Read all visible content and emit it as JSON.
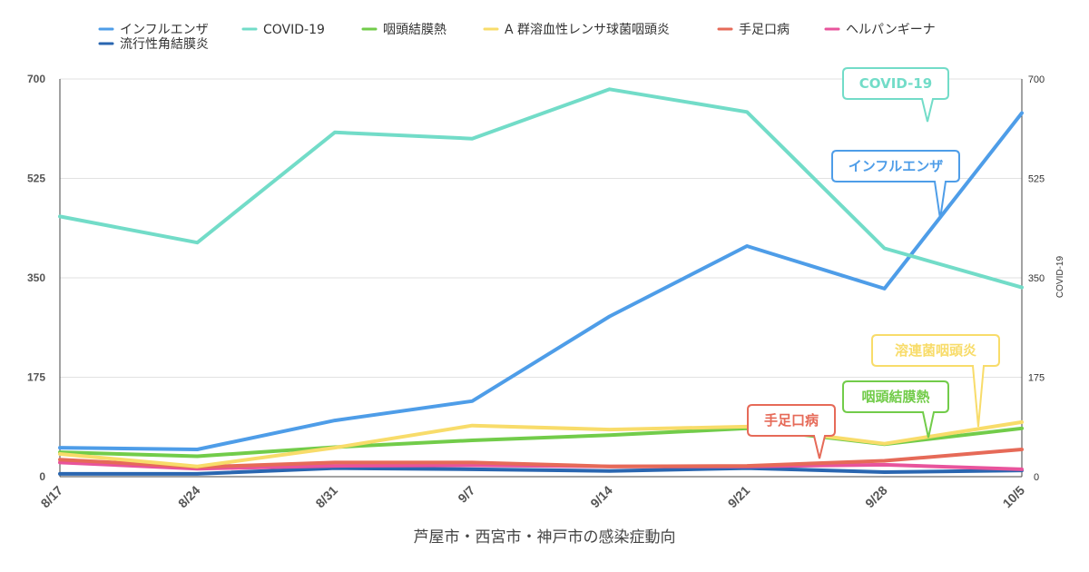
{
  "chart_data": {
    "type": "line",
    "title": "",
    "xlabel": "芦屋市・西宮市・神戸市の感染症動向",
    "ylabel": "",
    "ylabel_right": "COVID-19",
    "ylim": [
      0,
      700
    ],
    "yticks": [
      0,
      175,
      350,
      525,
      700
    ],
    "yticks_right": [
      0,
      175,
      350,
      525,
      700
    ],
    "grid": true,
    "legend_position": "top-left",
    "categories": [
      "8/17",
      "8/24",
      "8/31",
      "9/7",
      "9/14",
      "9/21",
      "9/28",
      "10/5"
    ],
    "series": [
      {
        "name": "インフルエンザ",
        "color": "#4e9de8",
        "values": [
          51,
          48,
          99,
          133,
          282,
          406,
          331,
          640
        ]
      },
      {
        "name": "COVID-19",
        "color": "#72dcc8",
        "values": [
          458,
          412,
          606,
          595,
          682,
          642,
          402,
          333
        ]
      },
      {
        "name": "咽頭結膜熱",
        "color": "#72cc4a",
        "values": [
          43,
          36,
          52,
          64,
          73,
          85,
          57,
          85
        ]
      },
      {
        "name": "A 群溶血性レンサ球菌咽頭炎",
        "color": "#f8dc6a",
        "values": [
          40,
          18,
          51,
          90,
          83,
          88,
          58,
          96
        ]
      },
      {
        "name": "手足口病",
        "color": "#e66a58",
        "values": [
          30,
          17,
          25,
          25,
          18,
          19,
          28,
          48
        ]
      },
      {
        "name": "ヘルパンギーナ",
        "color": "#e8549c",
        "values": [
          25,
          14,
          19,
          20,
          18,
          18,
          21,
          13
        ]
      },
      {
        "name": "流行性角結膜炎",
        "color": "#2a66b0",
        "values": [
          5,
          5,
          15,
          13,
          10,
          15,
          8,
          11
        ]
      }
    ],
    "annotations": [
      {
        "text": "COVID-19",
        "series": "COVID-19"
      },
      {
        "text": "インフルエンザ",
        "series": "インフルエンザ"
      },
      {
        "text": "溶連菌咽頭炎",
        "series": "A 群溶血性レンサ球菌咽頭炎"
      },
      {
        "text": "咽頭結膜熱",
        "series": "咽頭結膜熱"
      },
      {
        "text": "手足口病",
        "series": "手足口病"
      }
    ]
  }
}
